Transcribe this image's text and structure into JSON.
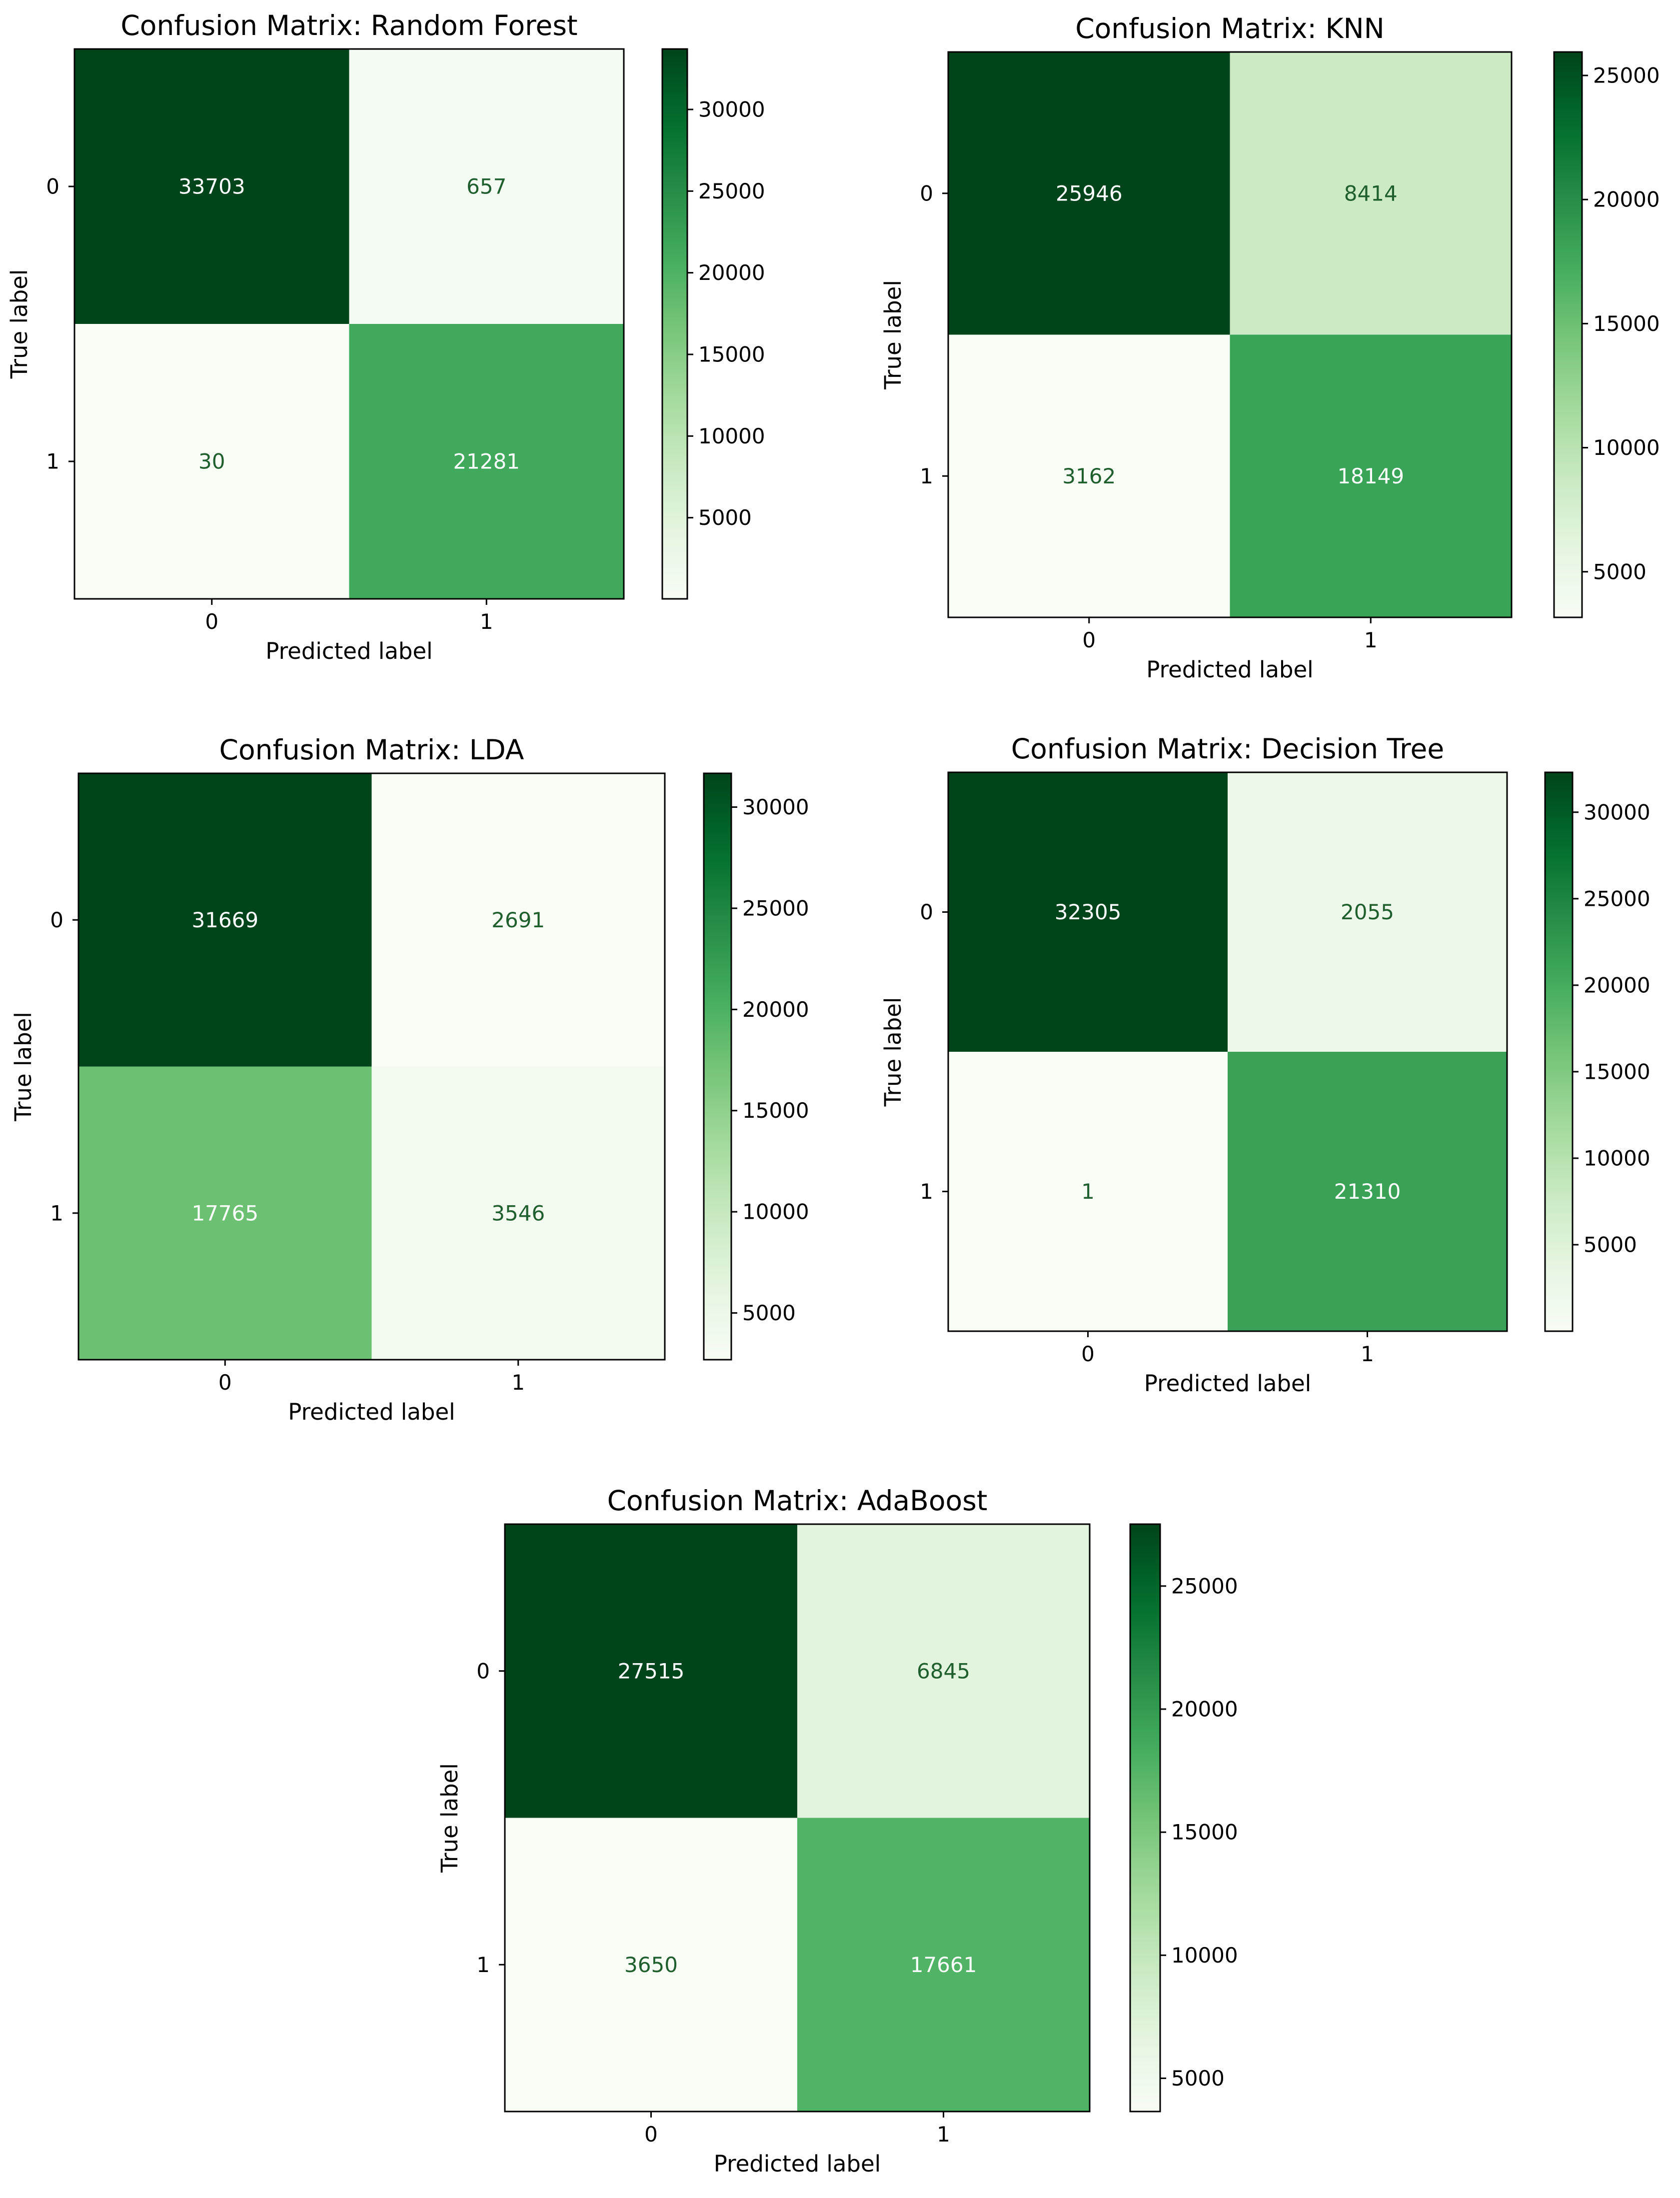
{
  "chart_data": [
    {
      "type": "heatmap",
      "title": "Confusion Matrix: Random Forest",
      "xlabel": "Predicted label",
      "ylabel": "True label",
      "x_categories": [
        "0",
        "1"
      ],
      "y_categories": [
        "0",
        "1"
      ],
      "matrix": [
        [
          33703,
          657
        ],
        [
          30,
          21281
        ]
      ],
      "colormap": "Greens",
      "colorbar_ticks": [
        "5000",
        "10000",
        "15000",
        "20000",
        "25000",
        "30000"
      ]
    },
    {
      "type": "heatmap",
      "title": "Confusion Matrix: KNN",
      "xlabel": "Predicted label",
      "ylabel": "True label",
      "x_categories": [
        "0",
        "1"
      ],
      "y_categories": [
        "0",
        "1"
      ],
      "matrix": [
        [
          25946,
          8414
        ],
        [
          3162,
          18149
        ]
      ],
      "colormap": "Greens",
      "colorbar_ticks": [
        "5000",
        "10000",
        "15000",
        "20000",
        "25000"
      ]
    },
    {
      "type": "heatmap",
      "title": "Confusion Matrix: LDA",
      "xlabel": "Predicted label",
      "ylabel": "True label",
      "x_categories": [
        "0",
        "1"
      ],
      "y_categories": [
        "0",
        "1"
      ],
      "matrix": [
        [
          31669,
          2691
        ],
        [
          17765,
          3546
        ]
      ],
      "colormap": "Greens",
      "colorbar_ticks": [
        "5000",
        "10000",
        "15000",
        "20000",
        "25000",
        "30000"
      ]
    },
    {
      "type": "heatmap",
      "title": "Confusion Matrix: Decision Tree",
      "xlabel": "Predicted label",
      "ylabel": "True label",
      "x_categories": [
        "0",
        "1"
      ],
      "y_categories": [
        "0",
        "1"
      ],
      "matrix": [
        [
          32305,
          2055
        ],
        [
          1,
          21310
        ]
      ],
      "colormap": "Greens",
      "colorbar_ticks": [
        "5000",
        "10000",
        "15000",
        "20000",
        "25000",
        "30000"
      ]
    },
    {
      "type": "heatmap",
      "title": "Confusion Matrix: AdaBoost",
      "xlabel": "Predicted label",
      "ylabel": "True label",
      "x_categories": [
        "0",
        "1"
      ],
      "y_categories": [
        "0",
        "1"
      ],
      "matrix": [
        [
          27515,
          6845
        ],
        [
          3650,
          17661
        ]
      ],
      "colormap": "Greens",
      "colorbar_ticks": [
        "5000",
        "10000",
        "15000",
        "20000",
        "25000"
      ]
    }
  ]
}
